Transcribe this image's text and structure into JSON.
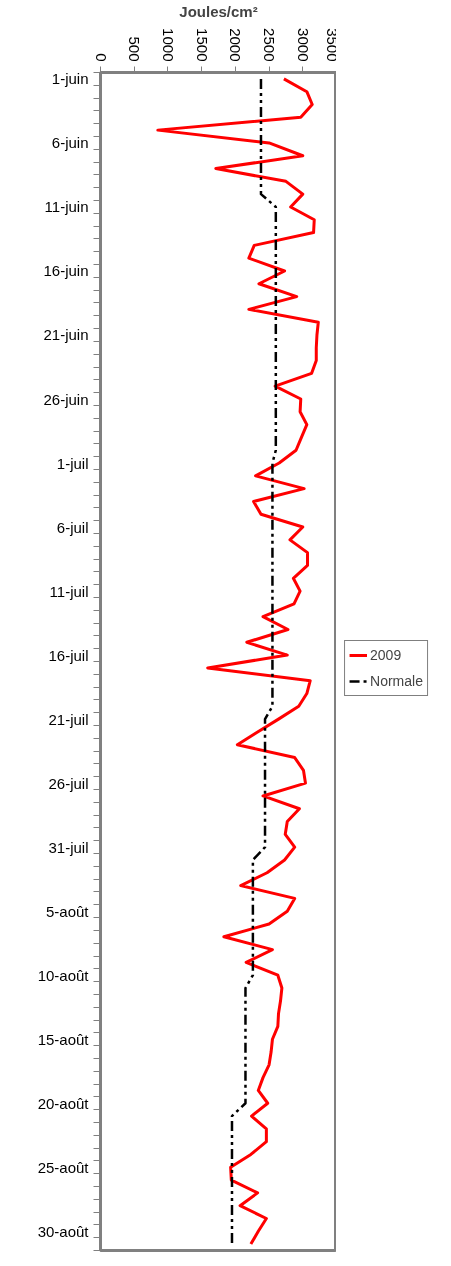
{
  "chart_data": {
    "type": "line",
    "orientation": "horizontal",
    "xlabel": "Joules/cm²",
    "categories": [
      "1-juin",
      null,
      null,
      null,
      null,
      "6-juin",
      null,
      null,
      null,
      null,
      "11-juin",
      null,
      null,
      null,
      null,
      "16-juin",
      null,
      null,
      null,
      null,
      "21-juin",
      null,
      null,
      null,
      null,
      "26-juin",
      null,
      null,
      null,
      null,
      "1-juil",
      null,
      null,
      null,
      null,
      "6-juil",
      null,
      null,
      null,
      null,
      "11-juil",
      null,
      null,
      null,
      null,
      "16-juil",
      null,
      null,
      null,
      null,
      "21-juil",
      null,
      null,
      null,
      null,
      "26-juil",
      null,
      null,
      null,
      null,
      "31-juil",
      null,
      null,
      null,
      null,
      "5-août",
      null,
      null,
      null,
      null,
      "10-août",
      null,
      null,
      null,
      null,
      "15-août",
      null,
      null,
      null,
      null,
      "20-août",
      null,
      null,
      null,
      null,
      "25-août",
      null,
      null,
      null,
      null,
      "30-août",
      null
    ],
    "series": [
      {
        "name": "2009",
        "color": "#ff0000",
        "line_style": "solid",
        "values": [
          2720,
          3060,
          3140,
          2970,
          850,
          2500,
          3000,
          1710,
          2750,
          3000,
          2820,
          3170,
          3160,
          2280,
          2200,
          2730,
          2350,
          2910,
          2200,
          3230,
          3210,
          3200,
          3200,
          3130,
          2590,
          2970,
          2960,
          3060,
          2980,
          2900,
          2650,
          2300,
          3020,
          2270,
          2380,
          3000,
          2810,
          3070,
          3070,
          2860,
          2960,
          2870,
          2410,
          2780,
          2170,
          2770,
          1590,
          3110,
          3060,
          2940,
          2640,
          2330,
          2030,
          2880,
          3010,
          3040,
          2410,
          2950,
          2770,
          2740,
          2880,
          2730,
          2470,
          2080,
          2880,
          2770,
          2500,
          1830,
          2550,
          2160,
          2630,
          2690,
          2670,
          2640,
          2630,
          2550,
          2530,
          2500,
          2410,
          2340,
          2480,
          2240,
          2460,
          2460,
          2230,
          1930,
          1940,
          2330,
          2070,
          2460,
          2340,
          2230
        ]
      },
      {
        "name": "Normale",
        "color": "#000000",
        "line_style": "dashed",
        "values": [
          2380,
          2380,
          2380,
          2380,
          2380,
          2380,
          2380,
          2380,
          2380,
          2380,
          2600,
          2600,
          2600,
          2600,
          2600,
          2600,
          2600,
          2600,
          2600,
          2600,
          2600,
          2600,
          2600,
          2600,
          2600,
          2600,
          2600,
          2600,
          2600,
          2600,
          2550,
          2550,
          2550,
          2550,
          2550,
          2550,
          2550,
          2550,
          2550,
          2550,
          2550,
          2550,
          2550,
          2550,
          2550,
          2550,
          2550,
          2550,
          2550,
          2550,
          2440,
          2440,
          2440,
          2440,
          2440,
          2440,
          2440,
          2440,
          2440,
          2440,
          2440,
          2260,
          2260,
          2260,
          2260,
          2260,
          2260,
          2260,
          2260,
          2260,
          2260,
          2150,
          2150,
          2150,
          2150,
          2150,
          2150,
          2150,
          2150,
          2150,
          2150,
          1950,
          1950,
          1950,
          1950,
          1950,
          1950,
          1950,
          1950,
          1950,
          1950,
          1950
        ]
      }
    ],
    "xlim": [
      0,
      3500
    ],
    "xticks": [
      0,
      500,
      1000,
      1500,
      2000,
      2500,
      3000,
      3500
    ],
    "legend": "right",
    "marker": "none"
  }
}
